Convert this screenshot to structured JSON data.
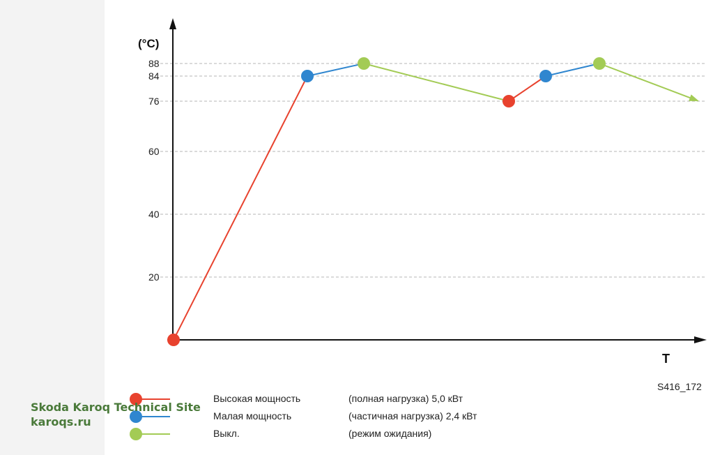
{
  "chart_data": {
    "type": "line",
    "y_unit_label": "(°C)",
    "x_axis_label": "T",
    "y_ticks": [
      20,
      40,
      60,
      76,
      84,
      88
    ],
    "ylim": [
      0,
      88
    ],
    "grid": "horizontal-dashed",
    "points": [
      {
        "t": 0,
        "y": 0,
        "mode": "high"
      },
      {
        "t": 1,
        "y": 84,
        "mode": "low"
      },
      {
        "t": 2,
        "y": 88,
        "mode": "off"
      },
      {
        "t": 3,
        "y": 76,
        "mode": "high"
      },
      {
        "t": 4,
        "y": 84,
        "mode": "low"
      },
      {
        "t": 5,
        "y": 88,
        "mode": "off"
      },
      {
        "t": 6,
        "y": 76,
        "mode": "end"
      }
    ],
    "legend": [
      {
        "key": "high",
        "name": "Высокая мощность",
        "desc": "(полная нагрузка) 5,0 кВт",
        "color": "#e8422e"
      },
      {
        "key": "low",
        "name": "Малая мощность",
        "desc": "(частичная нагрузка) 2,4 кВт",
        "color": "#2f86cf"
      },
      {
        "key": "off",
        "name": "Выкл.",
        "desc": "(режим ожидания)",
        "color": "#a3cb55"
      }
    ]
  },
  "figure_code": "S416_172",
  "watermark": {
    "title": "Skoda Karoq Technical Site",
    "url": "karoqs.ru"
  }
}
